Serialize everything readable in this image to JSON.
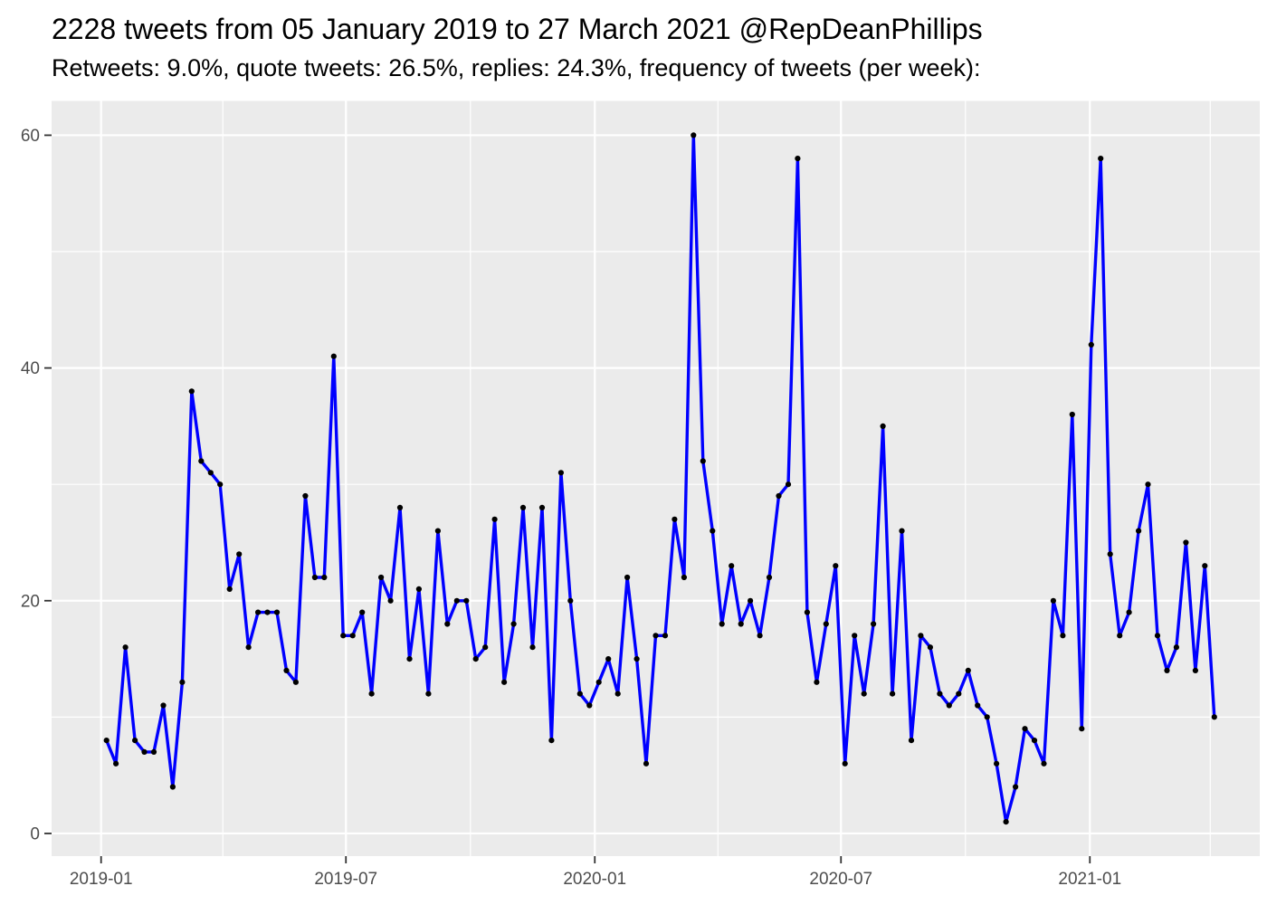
{
  "header": {
    "title": "2228 tweets from 05 January 2019 to 27 March 2021 @RepDeanPhillips",
    "subtitle": "Retweets: 9.0%, quote tweets: 26.5%, replies: 24.3%, frequency of tweets (per week):"
  },
  "chart_data": {
    "type": "line",
    "title": "2228 tweets from 05 January 2019 to 27 March 2021 @RepDeanPhillips",
    "subtitle": "Retweets: 9.0%, quote tweets: 26.5%, replies: 24.3%, frequency of tweets (per week):",
    "series_name": "tweets per week",
    "axis_origin_date": "2019-01-01",
    "start_day_offset": 4,
    "interval_days": 7,
    "values": [
      8,
      6,
      16,
      8,
      7,
      7,
      11,
      4,
      13,
      38,
      32,
      31,
      30,
      21,
      24,
      16,
      19,
      19,
      19,
      14,
      13,
      29,
      22,
      22,
      41,
      17,
      17,
      19,
      12,
      22,
      20,
      28,
      15,
      21,
      12,
      26,
      18,
      20,
      20,
      15,
      16,
      27,
      13,
      18,
      28,
      16,
      28,
      8,
      31,
      20,
      12,
      11,
      13,
      15,
      12,
      22,
      15,
      6,
      17,
      17,
      27,
      22,
      60,
      32,
      26,
      18,
      23,
      18,
      20,
      17,
      22,
      29,
      30,
      58,
      19,
      13,
      18,
      23,
      6,
      17,
      12,
      18,
      35,
      12,
      26,
      8,
      17,
      16,
      12,
      11,
      12,
      14,
      11,
      10,
      6,
      1,
      4,
      9,
      8,
      6,
      20,
      17,
      36,
      9,
      42,
      58,
      24,
      17,
      19,
      26,
      30,
      17,
      14,
      16,
      25,
      14,
      23,
      10
    ],
    "x_ticks_major": [
      {
        "label": "2019-01",
        "day": 0
      },
      {
        "label": "2019-07",
        "day": 181
      },
      {
        "label": "2020-01",
        "day": 365
      },
      {
        "label": "2020-07",
        "day": 547
      },
      {
        "label": "2021-01",
        "day": 731
      }
    ],
    "x_ticks_minor_days": [
      90,
      273,
      456,
      639,
      820
    ],
    "y_ticks_major": [
      0,
      20,
      40,
      60
    ],
    "y_ticks_minor": [
      10,
      30,
      50
    ],
    "ylim": [
      -1.95,
      62.95
    ],
    "xlim_days": [
      -36.6,
      856.6
    ],
    "grid": true,
    "legend_position": "none",
    "colors": {
      "line": "#0000FF",
      "point": "#000000",
      "panel": "#EBEBEB",
      "grid": "#FFFFFF",
      "axis_text": "#4D4D4D",
      "tick_mark": "#333333",
      "title_text": "#000000"
    }
  }
}
